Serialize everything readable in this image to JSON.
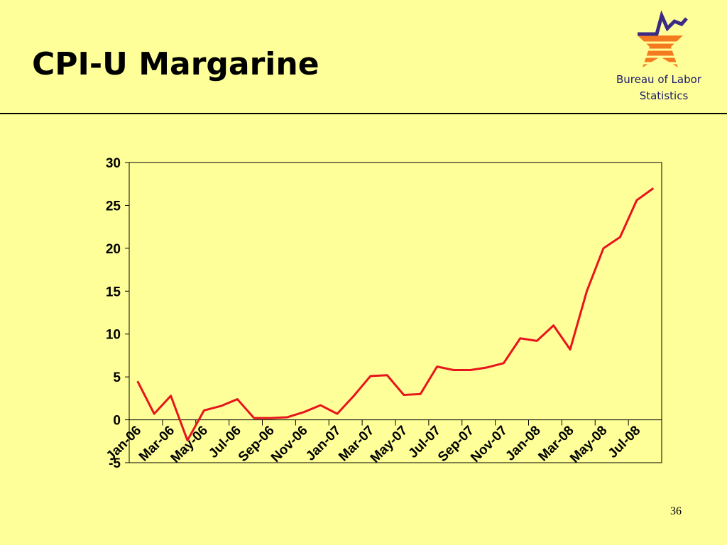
{
  "header": {
    "title": "CPI-U Margarine",
    "logo_text": [
      "Bureau of Labor",
      "Statistics"
    ]
  },
  "page_number": "36",
  "chart_data": {
    "type": "line",
    "categories": [
      "Jan-06",
      null,
      "Mar-06",
      null,
      "May-06",
      null,
      "Jul-06",
      null,
      "Sep-06",
      null,
      "Nov-06",
      null,
      "Jan-07",
      null,
      "Mar-07",
      null,
      "May-07",
      null,
      "Jul-07",
      null,
      "Sep-07",
      null,
      "Nov-07",
      null,
      "Jan-08",
      null,
      "Mar-08",
      null,
      "May-08",
      null,
      "Jul-08",
      null
    ],
    "series": [
      {
        "name": "Margarine",
        "color": "#e8141b",
        "values": [
          4.5,
          0.7,
          2.8,
          -2.4,
          1.1,
          1.6,
          2.4,
          0.2,
          0.2,
          0.3,
          0.9,
          1.7,
          0.7,
          2.8,
          5.1,
          5.2,
          2.9,
          3.0,
          6.2,
          5.8,
          5.8,
          6.1,
          6.6,
          9.5,
          9.2,
          11.0,
          8.2,
          15.0,
          20.0,
          21.3,
          25.6,
          27.0
        ]
      }
    ],
    "ylim": [
      -5,
      30
    ],
    "yticks": [
      -5,
      0,
      5,
      10,
      15,
      20,
      25,
      30
    ],
    "grid": false
  }
}
